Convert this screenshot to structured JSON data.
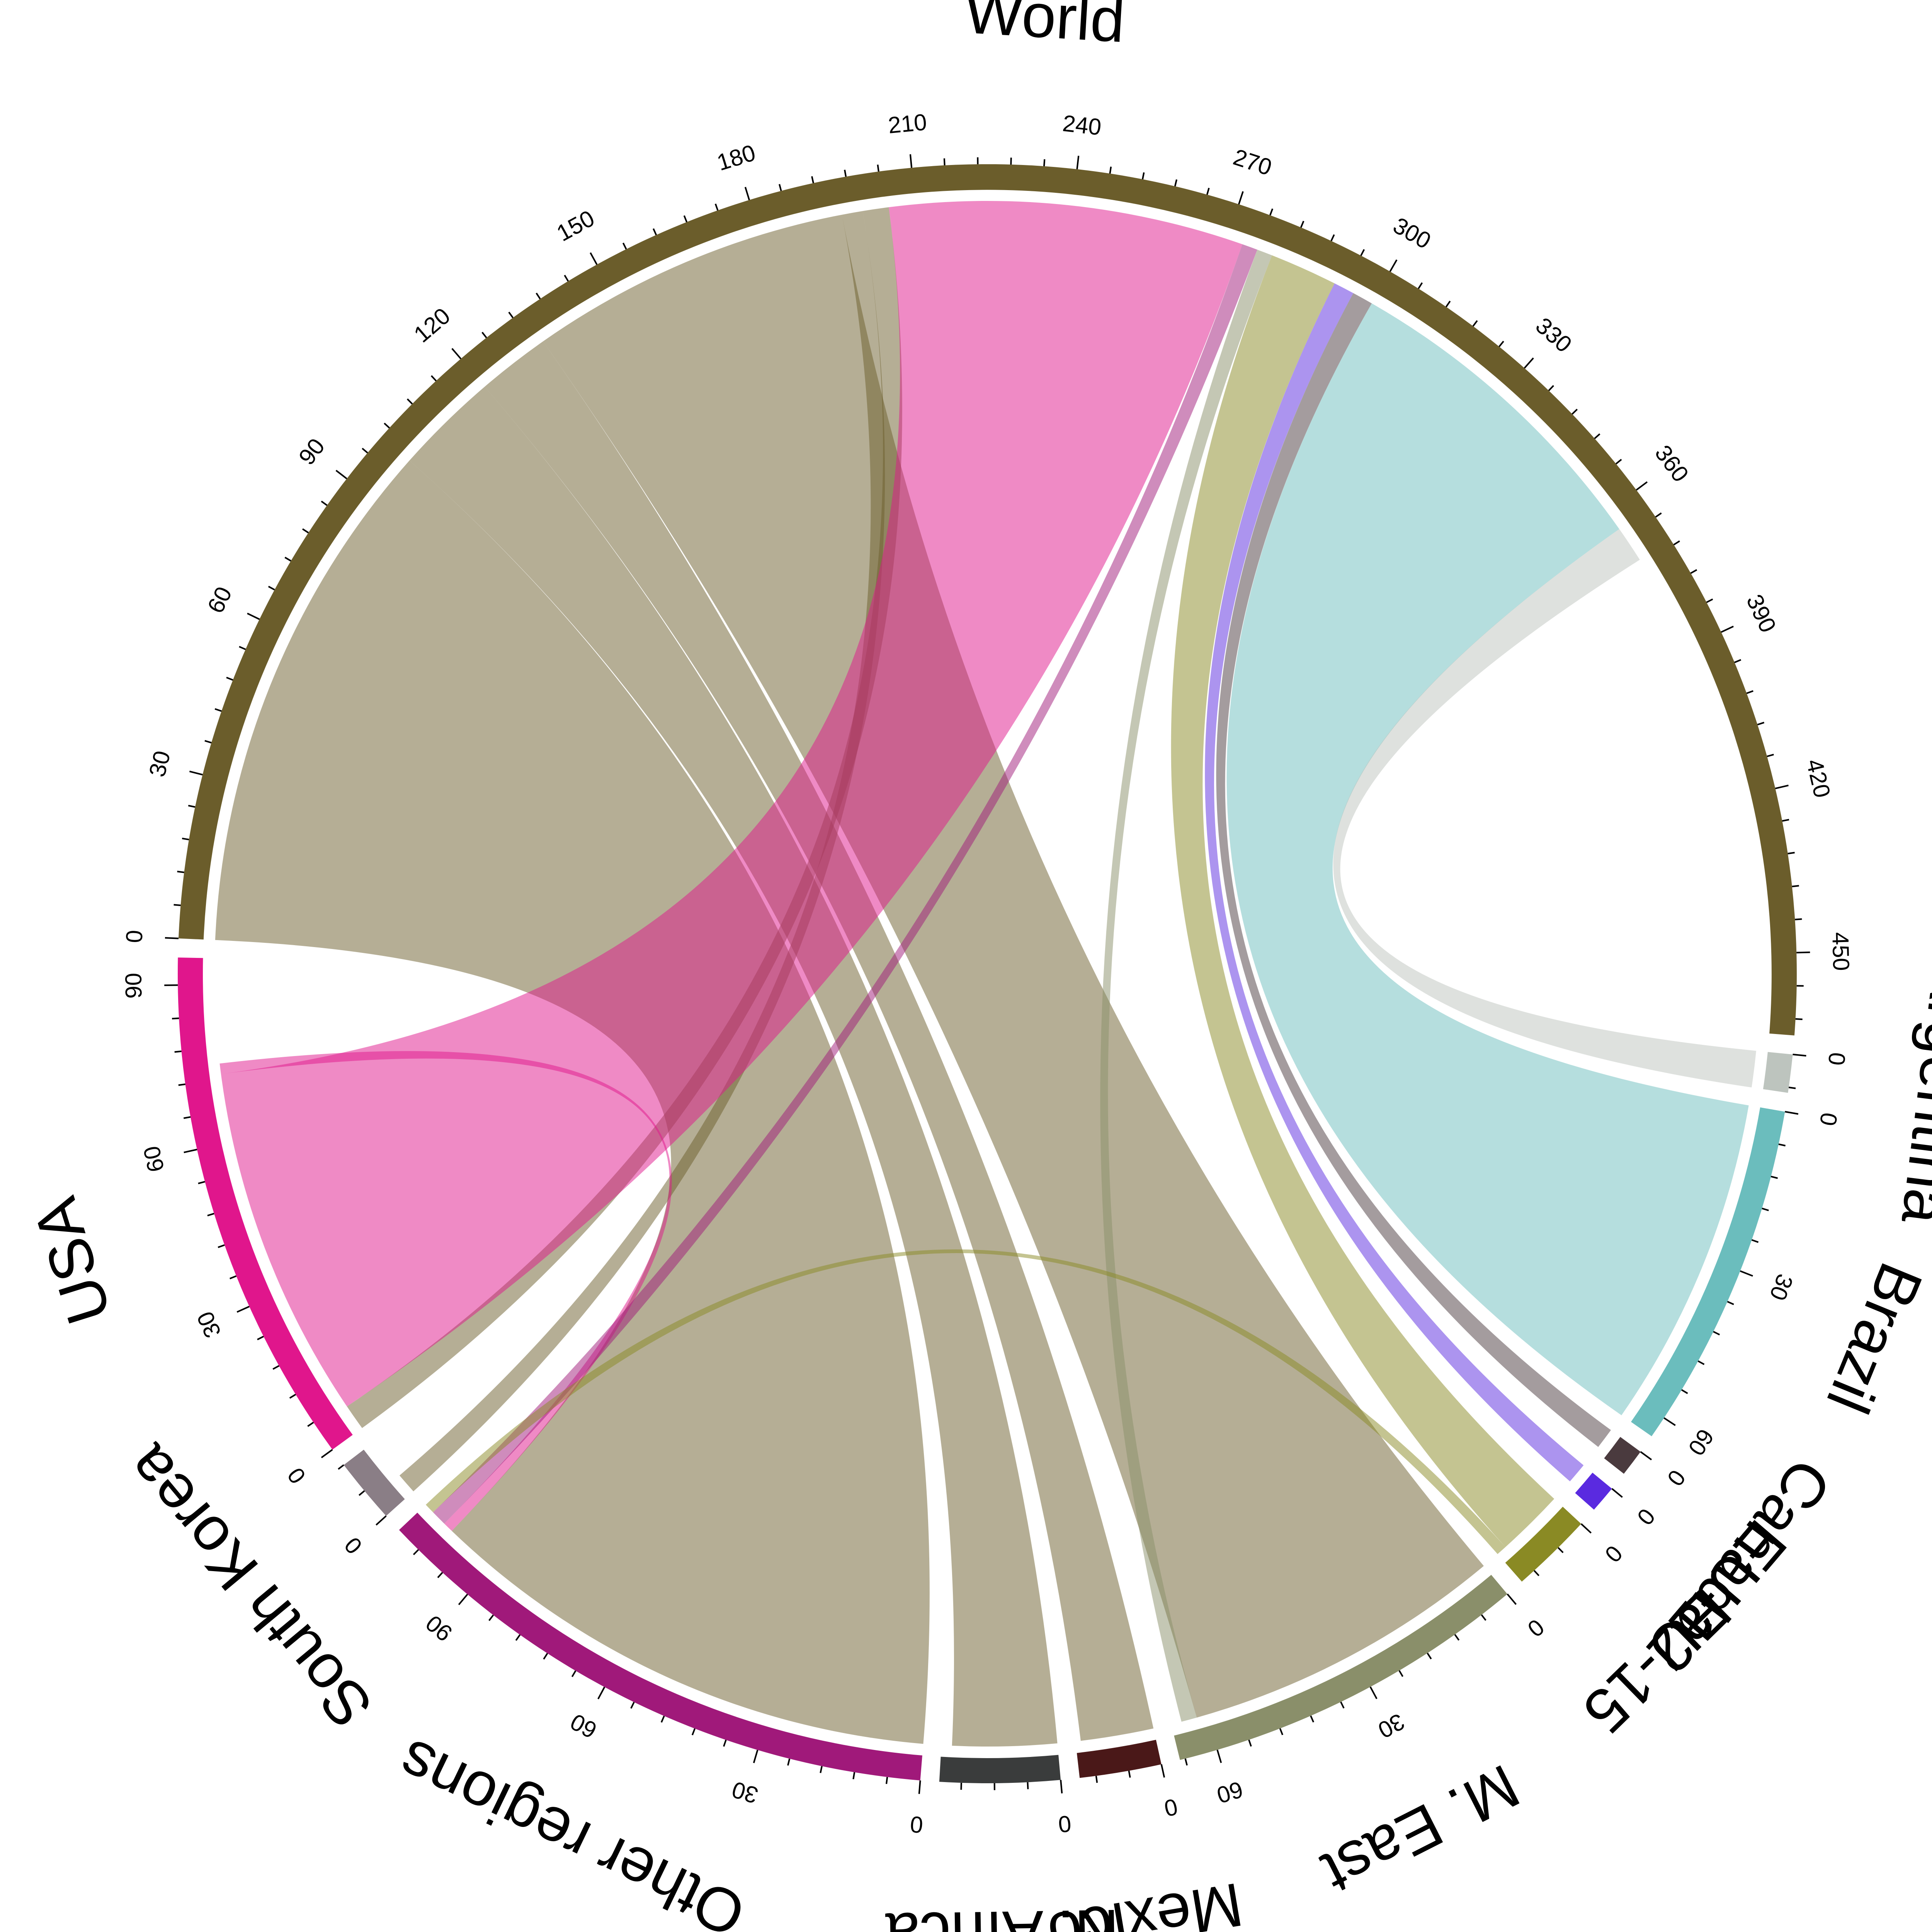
{
  "chart_data": {
    "type": "chord",
    "title": "",
    "sectors": [
      {
        "name": "World",
        "total": 465,
        "color": "#6b5d2b"
      },
      {
        "name": "Argentina",
        "total": 7,
        "color": "#bdc4be"
      },
      {
        "name": "Brazil",
        "total": 64,
        "color": "#6bbdbd"
      },
      {
        "name": "Canada",
        "total": 5,
        "color": "#4a3a3e"
      },
      {
        "name": "EU-12",
        "total": 5,
        "color": "#5a2ae0"
      },
      {
        "name": "EU-15",
        "total": 15,
        "color": "#8a8a24"
      },
      {
        "name": "M. East",
        "total": 67,
        "color": "#8a8f6a"
      },
      {
        "name": "Mexico",
        "total": 15,
        "color": "#4a1818"
      },
      {
        "name": "N. Africa",
        "total": 22,
        "color": "#3a3c3c"
      },
      {
        "name": "Other regions",
        "total": 107,
        "color": "#a0197a"
      },
      {
        "name": "South Korea",
        "total": 12,
        "color": "#8a7e86"
      },
      {
        "name": "USA",
        "total": 95,
        "color": "#e0168c"
      }
    ],
    "tick_step": 30,
    "flows": [
      {
        "from": "World",
        "to": "Other regions",
        "value": 100
      },
      {
        "from": "World",
        "to": "N. Africa",
        "value": 20
      },
      {
        "from": "World",
        "to": "Mexico",
        "value": 14
      },
      {
        "from": "World",
        "to": "M. East",
        "value": 62
      },
      {
        "from": "World",
        "to": "South Korea",
        "value": 4
      },
      {
        "from": "World",
        "to": "USA",
        "value": 5
      },
      {
        "from": "USA",
        "to": "World",
        "value": 68
      },
      {
        "from": "USA",
        "to": "Other regions",
        "value": 2
      },
      {
        "from": "Other regions",
        "to": "World",
        "value": 3
      },
      {
        "from": "M. East",
        "to": "World",
        "value": 3
      },
      {
        "from": "EU-15",
        "to": "World",
        "value": 13
      },
      {
        "from": "EU-15",
        "to": "Other regions",
        "value": 2
      },
      {
        "from": "EU-12",
        "to": "World",
        "value": 4
      },
      {
        "from": "Canada",
        "to": "World",
        "value": 4
      },
      {
        "from": "Brazil",
        "to": "World",
        "value": 64
      },
      {
        "from": "Argentina",
        "to": "World",
        "value": 7
      }
    ]
  }
}
